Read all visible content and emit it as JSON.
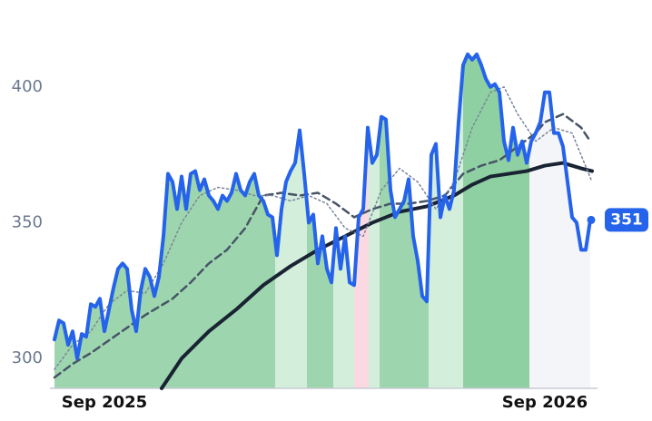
{
  "chart_data": {
    "type": "line",
    "xlim": [
      -1,
      119.6
    ],
    "xticks": [
      {
        "value": 11,
        "label": "Sep 2025"
      },
      {
        "value": 108,
        "label": "Sep 2026"
      }
    ],
    "ylim": [
      289,
      432
    ],
    "yticks": [
      300,
      350,
      400
    ],
    "regions": [
      {
        "start": -1,
        "end": 48.6,
        "color": "#9dd6ae"
      },
      {
        "start": 48.6,
        "end": 55.6,
        "color": "#d4eedc"
      },
      {
        "start": 55.6,
        "end": 61.4,
        "color": "#9dd6ae"
      },
      {
        "start": 61.4,
        "end": 66,
        "color": "#d4eedc"
      },
      {
        "start": 66,
        "end": 69.2,
        "color": "#fbd9e3"
      },
      {
        "start": 69.2,
        "end": 71.6,
        "color": "#d4eedc"
      },
      {
        "start": 71.6,
        "end": 82.4,
        "color": "#9dd6ae"
      },
      {
        "start": 82.4,
        "end": 90,
        "color": "#d4eedc"
      },
      {
        "start": 90,
        "end": 104.6,
        "color": "#8fd0a2"
      },
      {
        "start": 104.6,
        "end": 118.4,
        "color": "#f4f5f9"
      }
    ],
    "series": [
      {
        "color": "#2563eb",
        "style": "solid",
        "width": 4,
        "x": [
          0,
          1,
          2,
          3,
          4,
          5,
          6,
          7,
          8,
          9,
          10,
          11,
          12,
          13,
          14,
          15,
          16,
          17,
          18,
          19,
          20,
          21,
          22,
          23,
          24,
          25,
          26,
          27,
          28,
          29,
          30,
          31,
          32,
          33,
          34,
          35,
          36,
          37,
          38,
          39,
          40,
          41,
          42,
          43,
          44,
          45,
          46,
          47,
          48,
          49,
          50,
          51,
          52,
          53,
          54,
          55,
          56,
          57,
          58,
          59,
          60,
          61,
          62,
          63,
          64,
          65,
          66,
          67,
          68,
          69,
          70,
          71,
          72,
          73,
          74,
          75,
          76,
          77,
          78,
          79,
          80,
          81,
          82,
          83,
          84,
          85,
          86,
          87,
          88,
          89,
          90,
          91,
          92,
          93,
          94,
          95,
          96,
          97,
          98,
          99,
          100,
          101,
          102,
          103,
          104,
          105,
          106,
          107,
          108,
          109,
          110,
          111,
          112,
          113,
          114,
          115,
          116,
          117,
          118
        ],
        "values": [
          307,
          314,
          313,
          305,
          310,
          300,
          309,
          308,
          320,
          319,
          322,
          310,
          318,
          326,
          333,
          335,
          333,
          318,
          310,
          325,
          333,
          330,
          323,
          330,
          345,
          368,
          365,
          355,
          367,
          355,
          368,
          369,
          362,
          366,
          360,
          358,
          355,
          360,
          358,
          361,
          368,
          362,
          360,
          365,
          368,
          360,
          358,
          353,
          352,
          338,
          355,
          365,
          369,
          372,
          384,
          368,
          350,
          353,
          335,
          345,
          333,
          328,
          348,
          333,
          345,
          328,
          327,
          352,
          355,
          385,
          372,
          375,
          389,
          388,
          362,
          352,
          355,
          358,
          366,
          345,
          336,
          323,
          321,
          375,
          379,
          352,
          360,
          355,
          362,
          387,
          408,
          412,
          410,
          412,
          408,
          403,
          400,
          401,
          398,
          380,
          373,
          385,
          375,
          380,
          372,
          380,
          383,
          387,
          398,
          398,
          383,
          383,
          378,
          365,
          352,
          350,
          340,
          340,
          351
        ]
      },
      {
        "color": "#1a2333",
        "style": "solid",
        "width": 4,
        "x": [
          23.6,
          28,
          34,
          40,
          46,
          52,
          58,
          64,
          70,
          76,
          82,
          88,
          92,
          96,
          100,
          104,
          108,
          112,
          116,
          118.4
        ],
        "values": [
          289,
          300,
          310,
          318,
          327,
          334,
          340,
          345,
          350,
          354,
          356,
          360,
          364,
          367,
          368,
          369,
          371,
          372,
          370,
          369
        ]
      },
      {
        "color": "#475467",
        "style": "dashed",
        "width": 2.5,
        "x": [
          0,
          4,
          8,
          14,
          20,
          26,
          30,
          34,
          38,
          42,
          46,
          50,
          54,
          58,
          62,
          66,
          70,
          74,
          78,
          82,
          86,
          90,
          94,
          98,
          102,
          106,
          108,
          112,
          116,
          118
        ],
        "values": [
          293,
          298,
          302,
          309,
          316,
          322,
          328,
          335,
          340,
          348,
          360,
          361,
          360,
          361,
          357,
          352,
          355,
          357,
          357,
          358,
          360,
          368,
          371,
          373,
          378,
          383,
          387,
          390,
          385,
          380
        ]
      },
      {
        "color": "#7a8599",
        "style": "dotted",
        "width": 1.5,
        "x": [
          0,
          4,
          8,
          12,
          16,
          20,
          24,
          28,
          32,
          36,
          40,
          44,
          48,
          52,
          56,
          60,
          64,
          68,
          72,
          76,
          80,
          84,
          88,
          92,
          96,
          99,
          102,
          106,
          110,
          114,
          118.4
        ],
        "values": [
          296,
          305,
          310,
          320,
          325,
          324,
          335,
          350,
          360,
          363,
          362,
          360,
          360,
          358,
          360,
          357,
          348,
          345,
          362,
          370,
          365,
          355,
          365,
          385,
          398,
          400,
          390,
          380,
          385,
          383,
          365
        ]
      }
    ]
  }
}
